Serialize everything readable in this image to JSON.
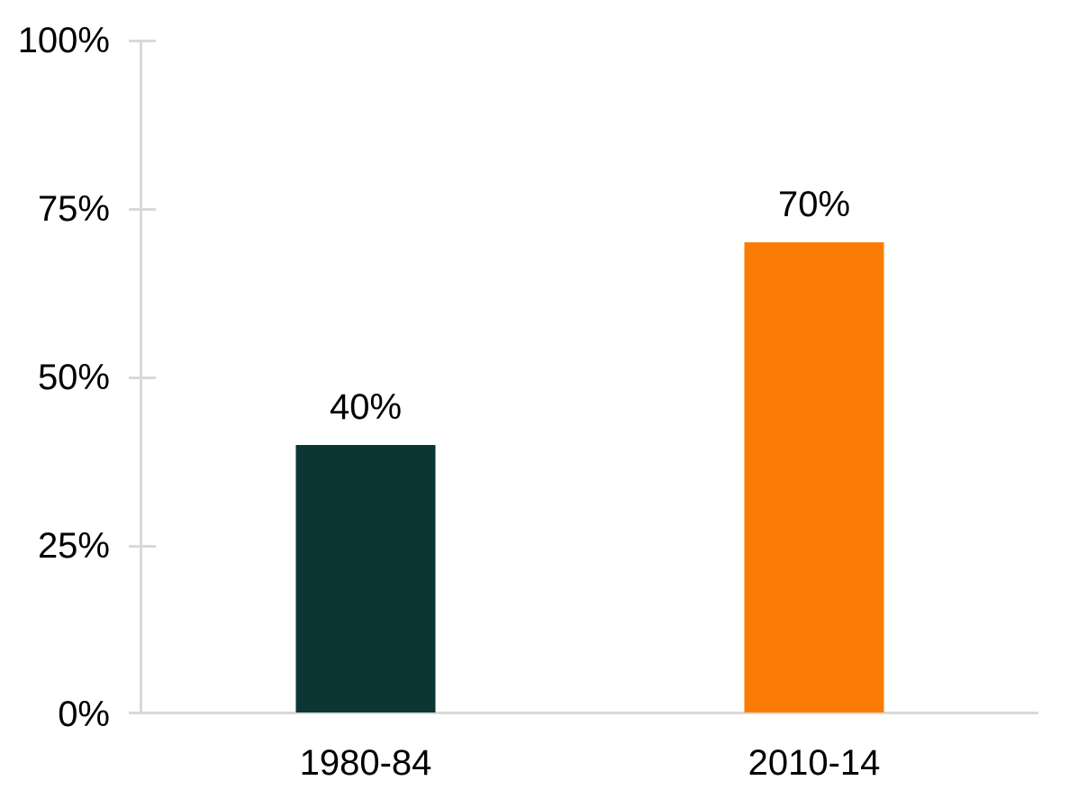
{
  "chart_data": {
    "type": "bar",
    "categories": [
      "1980-84",
      "2010-14"
    ],
    "values": [
      40,
      70
    ],
    "value_labels": [
      "40%",
      "70%"
    ],
    "bar_colors": [
      "#0b3634",
      "#fb7c05"
    ],
    "y_ticks": [
      {
        "label": "100%",
        "value": 100
      },
      {
        "label": "75%",
        "value": 75
      },
      {
        "label": "50%",
        "value": 50
      },
      {
        "label": "25%",
        "value": 25
      },
      {
        "label": "0%",
        "value": 0
      }
    ],
    "ylim": [
      0,
      100
    ],
    "grid": false,
    "legend": false,
    "axis_color": "#d9d9d9",
    "text_color": "#000000",
    "background_color": "#ffffff"
  }
}
